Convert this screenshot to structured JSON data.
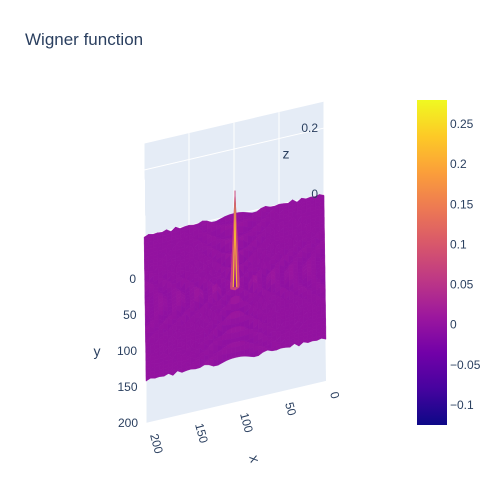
{
  "chart_data": {
    "type": "surface3d",
    "title": "Wigner function",
    "xlabel": "x",
    "ylabel": "y",
    "zlabel": "z",
    "x_ticks": [
      200,
      150,
      100,
      50,
      0
    ],
    "y_ticks": [
      0,
      50,
      100,
      150,
      200
    ],
    "z_ticks": [
      0,
      0.2
    ],
    "xlim": [
      0,
      200
    ],
    "ylim": [
      0,
      200
    ],
    "zlim": [
      -0.13,
      0.28
    ],
    "colorbar": {
      "ticks": [
        -0.1,
        -0.05,
        0,
        0.05,
        0.1,
        0.15,
        0.2,
        0.25
      ],
      "tick_labels": [
        "−0.1",
        "−0.05",
        "0",
        "0.05",
        "0.1",
        "0.15",
        "0.2",
        "0.25"
      ],
      "range": [
        -0.125,
        0.28
      ],
      "colorscale": "Plasma",
      "colors": [
        "#0d0887",
        "#46039f",
        "#7201a8",
        "#9c179e",
        "#bd3786",
        "#d8576b",
        "#ed7953",
        "#fb9f3a",
        "#fdca26",
        "#f0f921"
      ]
    },
    "surface": {
      "grid_size": 201,
      "peak": {
        "x": 100,
        "y": 100,
        "z": 0.27
      },
      "background_level": 0,
      "ripple": "concentric rings of small oscillating values (about ±0.02) around the central peak"
    }
  }
}
